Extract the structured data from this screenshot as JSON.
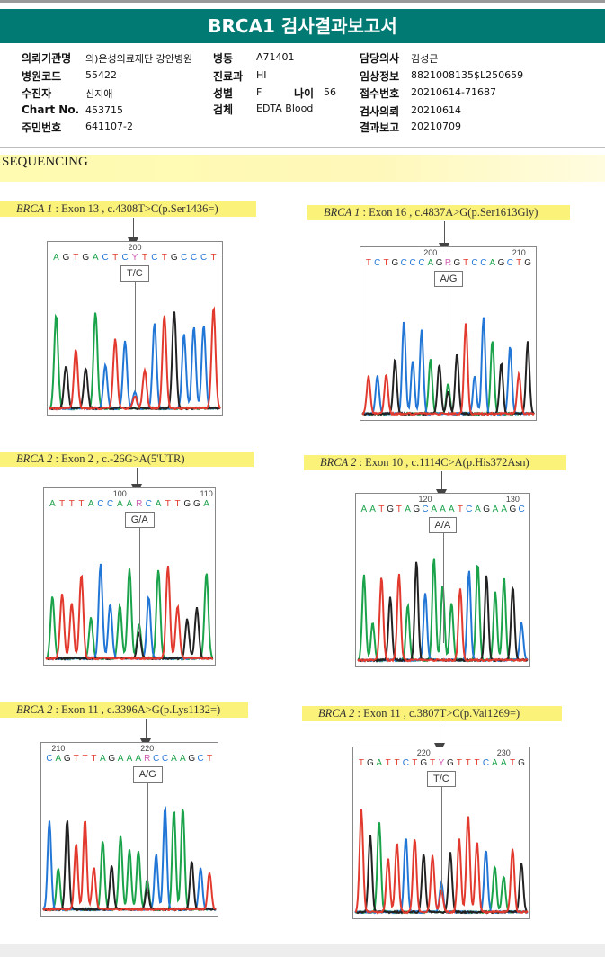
{
  "header": {
    "title": "BRCA1 검사결과보고서"
  },
  "info": {
    "institution_label": "의뢰기관명",
    "institution": "의)은성의료재단 강안병원",
    "ward_label": "병동",
    "ward": "A71401",
    "doctor_label": "담당의사",
    "doctor": "김성근",
    "hospital_code_label": "병원코드",
    "hospital_code": "55422",
    "dept_label": "진료과",
    "dept": "HI",
    "clinical_label": "임상정보",
    "clinical": "8821008135$L250659",
    "patient_label": "수진자",
    "patient": "신지애",
    "sex_label": "성별",
    "sex": "F",
    "age_label": "나이",
    "age": "56",
    "receipt_label": "접수번호",
    "receipt": "20210614-71687",
    "chart_label": "Chart No.",
    "chart": "453715",
    "specimen_label": "검체",
    "specimen": "EDTA Blood",
    "request_label": "검사의뢰",
    "request": "20210614",
    "idnum_label": "주민번호",
    "idnum": "641107-2",
    "report_label": "결과보고",
    "report": "20210709"
  },
  "section_title": "SEQUENCING",
  "colors": {
    "A": "#1aa34a",
    "C": "#2277d6",
    "G": "#222222",
    "T": "#e23a2e",
    "R": "#d05bb0",
    "Y": "#d05bb0",
    "banner": "#007a72",
    "highlight": "#fbf27a"
  },
  "variants": [
    {
      "gene": "BRCA 1",
      "detail": ": Exon 13 , c.4308T>C(p.Ser1436=)",
      "sequence": "AGTGACTCYTCTGCCCT",
      "positions": [
        {
          "label": "200",
          "index": 8
        }
      ],
      "genotype": "T/C",
      "variant_index": 8
    },
    {
      "gene": "BRCA 1",
      "detail": ": Exon 16 , c.4837A>G(p.Ser1613Gly)",
      "sequence": "TCTGCCCAGRGTCCAGCTG",
      "positions": [
        {
          "label": "200",
          "index": 7
        },
        {
          "label": "210",
          "index": 17
        }
      ],
      "genotype": "A/G",
      "variant_index": 9
    },
    {
      "gene": "BRCA 2",
      "detail": ": Exon 2 , c.-26G>A(5'UTR)",
      "sequence": "ATTTACCAARCATTGGA",
      "positions": [
        {
          "label": "100",
          "index": 7
        },
        {
          "label": "110",
          "index": 16
        }
      ],
      "genotype": "G/A",
      "variant_index": 9
    },
    {
      "gene": "BRCA 2",
      "detail": ": Exon 10 , c.1114C>A(p.His372Asn)",
      "sequence": "AATGTAGCAAATCAGAAGC",
      "positions": [
        {
          "label": "120",
          "index": 7
        },
        {
          "label": "130",
          "index": 17
        }
      ],
      "genotype": "A/A",
      "variant_index": 9
    },
    {
      "gene": "BRCA 2",
      "detail": ": Exon 11 , c.3396A>G(p.Lys1132=)",
      "sequence": "CAGTTTAGAAARCCAAGCT",
      "positions": [
        {
          "label": "210",
          "index": 1
        },
        {
          "label": "220",
          "index": 11
        }
      ],
      "genotype": "A/G",
      "variant_index": 11
    },
    {
      "gene": "BRCA 2",
      "detail": ": Exon 11 , c.3807T>C(p.Val1269=)",
      "sequence": "TGATTCTGTYGTTTCAATG",
      "positions": [
        {
          "label": "220",
          "index": 7
        },
        {
          "label": "230",
          "index": 16
        }
      ],
      "genotype": "T/C",
      "variant_index": 9
    }
  ]
}
